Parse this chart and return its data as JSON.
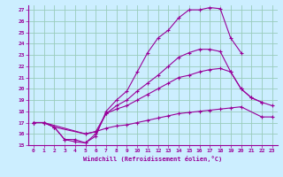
{
  "xlabel": "Windchill (Refroidissement éolien,°C)",
  "bg_color": "#cceeff",
  "line_color": "#990099",
  "grid_color": "#99ccbb",
  "xlim": [
    -0.5,
    23.5
  ],
  "ylim": [
    15,
    27.4
  ],
  "xticks": [
    0,
    1,
    2,
    3,
    4,
    5,
    6,
    7,
    8,
    9,
    10,
    11,
    12,
    13,
    14,
    15,
    16,
    17,
    18,
    19,
    20,
    21,
    22,
    23
  ],
  "yticks": [
    15,
    16,
    17,
    18,
    19,
    20,
    21,
    22,
    23,
    24,
    25,
    26,
    27
  ],
  "lines": [
    {
      "x": [
        0,
        1,
        2,
        3,
        4,
        5,
        6,
        7,
        8,
        9,
        10,
        11,
        12,
        13,
        14,
        15,
        16,
        17,
        18,
        19,
        20
      ],
      "y": [
        17.0,
        17.0,
        16.6,
        15.5,
        15.5,
        15.2,
        15.8,
        18.0,
        19.0,
        19.8,
        21.5,
        23.2,
        24.5,
        25.2,
        26.3,
        27.0,
        27.0,
        27.2,
        27.1,
        24.5,
        23.2
      ]
    },
    {
      "x": [
        0,
        1,
        2,
        3,
        4,
        5,
        6,
        7,
        8,
        9,
        10,
        11,
        12,
        13,
        14,
        15,
        16,
        17,
        18,
        19,
        20,
        21,
        22
      ],
      "y": [
        17.0,
        17.0,
        16.6,
        15.5,
        15.3,
        15.2,
        16.0,
        17.8,
        18.5,
        19.0,
        19.8,
        20.5,
        21.2,
        22.0,
        22.8,
        23.2,
        23.5,
        23.5,
        23.3,
        21.5,
        20.0,
        19.2,
        18.8
      ]
    },
    {
      "x": [
        0,
        1,
        2,
        5,
        6,
        7,
        8,
        9,
        10,
        11,
        12,
        13,
        14,
        15,
        16,
        17,
        18,
        19,
        20,
        21,
        22,
        23
      ],
      "y": [
        17.0,
        17.0,
        16.6,
        16.0,
        16.2,
        17.8,
        18.2,
        18.5,
        19.0,
        19.5,
        20.0,
        20.5,
        21.0,
        21.2,
        21.5,
        21.7,
        21.8,
        21.5,
        20.0,
        19.2,
        18.8,
        18.5
      ]
    },
    {
      "x": [
        0,
        1,
        5,
        6,
        7,
        8,
        9,
        10,
        11,
        12,
        13,
        14,
        15,
        16,
        17,
        18,
        19,
        20,
        22,
        23
      ],
      "y": [
        17.0,
        17.0,
        16.0,
        16.2,
        16.5,
        16.7,
        16.8,
        17.0,
        17.2,
        17.4,
        17.6,
        17.8,
        17.9,
        18.0,
        18.1,
        18.2,
        18.3,
        18.4,
        17.5,
        17.5
      ]
    }
  ]
}
